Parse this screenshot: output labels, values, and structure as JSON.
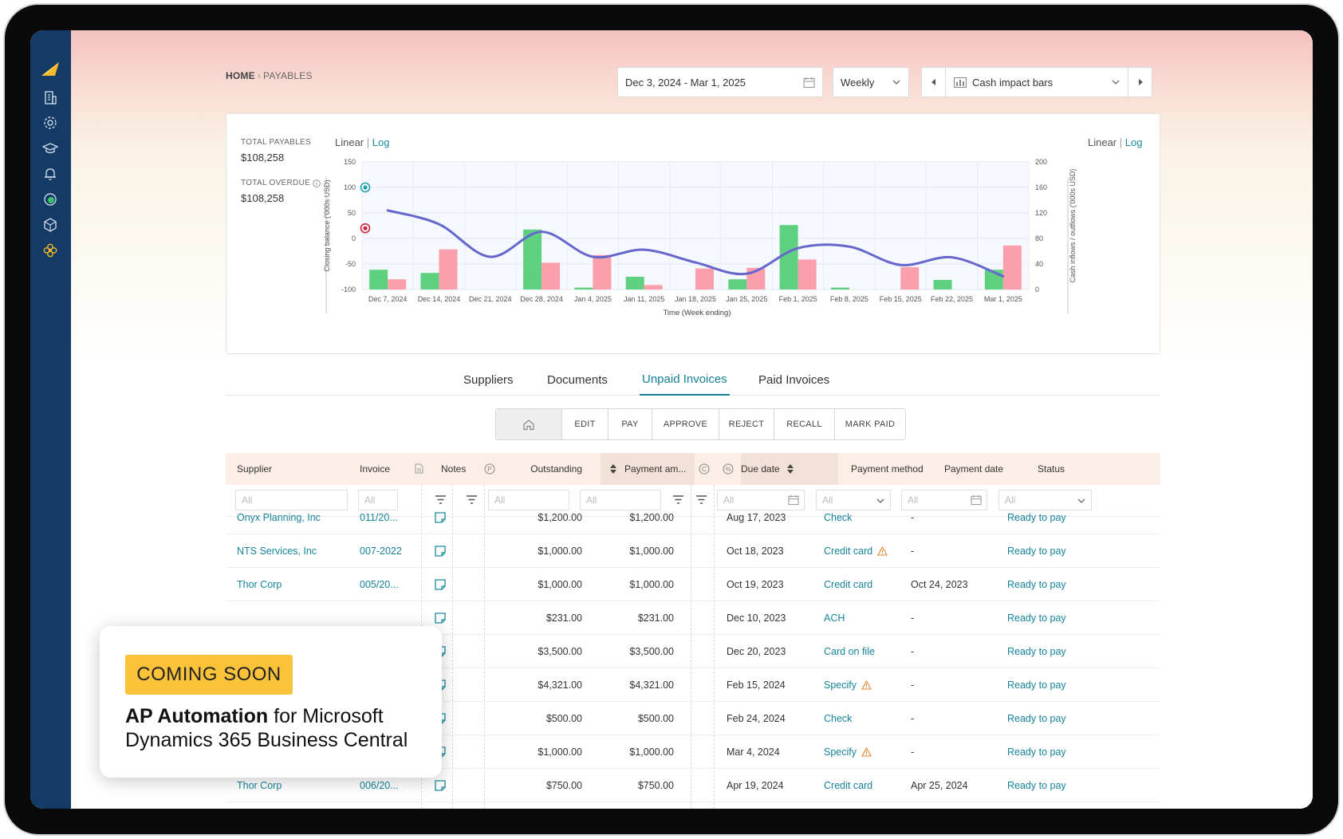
{
  "breadcrumb": {
    "home": "HOME",
    "current": "PAYABLES"
  },
  "controls": {
    "date_range": "Dec 3, 2024 - Mar 1, 2025",
    "interval": "Weekly",
    "view": "Cash impact bars"
  },
  "totals": {
    "payables_label": "TOTAL PAYABLES",
    "payables_value": "$108,258",
    "overdue_label": "TOTAL OVERDUE",
    "overdue_value": "$108,258"
  },
  "scale_toggle": {
    "linear": "Linear",
    "sep": "|",
    "log": "Log"
  },
  "chart_data": {
    "type": "bar",
    "xlabel": "Time (Week ending)",
    "ylabel_left": "Closing balance ('000s USD)",
    "ylabel_right": "Cash inflows / outflows ('000s USD)",
    "categories": [
      "Dec 7, 2024",
      "Dec 14, 2024",
      "Dec 21, 2024",
      "Dec 28, 2024",
      "Jan 4, 2025",
      "Jan 11, 2025",
      "Jan 18, 2025",
      "Jan 25, 2025",
      "Feb 1, 2025",
      "Feb 8, 2025",
      "Feb 15, 2025",
      "Feb 22, 2025",
      "Mar 1, 2025"
    ],
    "left_axis": {
      "ylim": [
        -100,
        150
      ],
      "ticks": [
        -100,
        -50,
        0,
        50,
        100,
        150
      ]
    },
    "right_axis": {
      "ylim": [
        0,
        200
      ],
      "ticks": [
        0,
        40,
        80,
        120,
        160,
        200
      ]
    },
    "series": [
      {
        "kind": "bar",
        "axis": "right",
        "color": "#5fcf80",
        "values": [
          31,
          26,
          0,
          94,
          3,
          20,
          0,
          16,
          101,
          3,
          0,
          15,
          31
        ]
      },
      {
        "kind": "bar",
        "axis": "right",
        "color": "#fb9fac",
        "values": [
          16,
          63,
          0,
          42,
          54,
          7,
          33,
          34,
          47,
          0,
          35,
          0,
          69
        ]
      },
      {
        "kind": "line",
        "axis": "left",
        "color": "#6567cc",
        "values": [
          55,
          28,
          -36,
          13,
          -36,
          -22,
          -47,
          -69,
          -19,
          -16,
          -52,
          -37,
          -74
        ]
      }
    ],
    "markers": [
      {
        "axis": "left",
        "value": 100,
        "color": "#1ea0a8"
      },
      {
        "axis": "left",
        "value": 20,
        "color": "#c8243b"
      }
    ],
    "grid": true
  },
  "tabs": [
    "Suppliers",
    "Documents",
    "Unpaid Invoices",
    "Paid Invoices"
  ],
  "active_tab": "Unpaid Invoices",
  "toolbar": [
    "EDIT",
    "PAY",
    "APPROVE",
    "REJECT",
    "RECALL",
    "MARK PAID"
  ],
  "columns": {
    "supplier": "Supplier",
    "invoice": "Invoice",
    "notes": "Notes",
    "outstanding": "Outstanding",
    "payment_amount": "Payment am...",
    "due_date": "Due date",
    "payment_method": "Payment method",
    "payment_date": "Payment date",
    "status": "Status"
  },
  "filter_placeholder": "All",
  "rows": [
    {
      "supplier": "Onyx Planning, Inc",
      "invoice": "011/20...",
      "outstanding": "$1,200.00",
      "payment": "$1,200.00",
      "due": "Aug 17, 2023",
      "method": "Check",
      "warn": false,
      "pay_date": "-",
      "status": "Ready to pay"
    },
    {
      "supplier": "NTS Services, Inc",
      "invoice": "007-2022",
      "outstanding": "$1,000.00",
      "payment": "$1,000.00",
      "due": "Oct 18, 2023",
      "method": "Credit card",
      "warn": true,
      "pay_date": "-",
      "status": "Ready to pay"
    },
    {
      "supplier": "Thor Corp",
      "invoice": "005/20...",
      "outstanding": "$1,000.00",
      "payment": "$1,000.00",
      "due": "Oct 19, 2023",
      "method": "Credit card",
      "warn": false,
      "pay_date": "Oct 24, 2023",
      "status": "Ready to pay"
    },
    {
      "supplier": "",
      "invoice": "",
      "outstanding": "$231.00",
      "payment": "$231.00",
      "due": "Dec 10, 2023",
      "method": "ACH",
      "warn": false,
      "pay_date": "-",
      "status": "Ready to pay"
    },
    {
      "supplier": "",
      "invoice": "",
      "outstanding": "$3,500.00",
      "payment": "$3,500.00",
      "due": "Dec 20, 2023",
      "method": "Card on file",
      "warn": false,
      "pay_date": "-",
      "status": "Ready to pay"
    },
    {
      "supplier": "",
      "invoice": "",
      "outstanding": "$4,321.00",
      "payment": "$4,321.00",
      "due": "Feb 15, 2024",
      "method": "Specify",
      "warn": true,
      "pay_date": "-",
      "status": "Ready to pay"
    },
    {
      "supplier": "",
      "invoice": "",
      "outstanding": "$500.00",
      "payment": "$500.00",
      "due": "Feb 24, 2024",
      "method": "Check",
      "warn": false,
      "pay_date": "-",
      "status": "Ready to pay"
    },
    {
      "supplier": "",
      "invoice": "",
      "outstanding": "$1,000.00",
      "payment": "$1,000.00",
      "due": "Mar 4, 2024",
      "method": "Specify",
      "warn": true,
      "pay_date": "-",
      "status": "Ready to pay"
    },
    {
      "supplier": "Thor Corp",
      "invoice": "006/20...",
      "outstanding": "$750.00",
      "payment": "$750.00",
      "due": "Apr 19, 2024",
      "method": "Credit card",
      "warn": false,
      "pay_date": "Apr 25, 2024",
      "status": "Ready to pay"
    }
  ],
  "promo": {
    "badge": "COMING SOON",
    "bold": "AP Automation",
    "rest": " for Microsoft Dynamics 365 Business Central"
  }
}
